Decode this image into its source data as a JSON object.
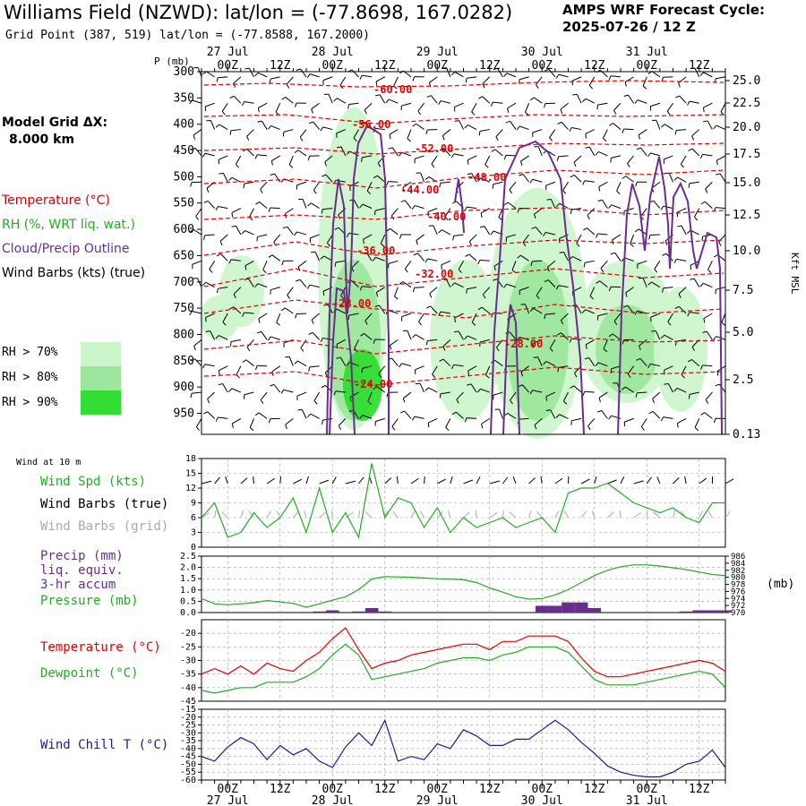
{
  "header": {
    "title": "Williams Field (NZWD):  lat/lon = (-77.8698, 167.0282)",
    "grid_point": "Grid Point (387, 519) lat/lon = (-77.8588, 167.2000)",
    "cycle_line1": "AMPS WRF Forecast Cycle:",
    "cycle_line2": "2025-07-26 / 12  Z",
    "model_grid_line1": "Model Grid ΔX:",
    "model_grid_line2": "8.000 km"
  },
  "legend": {
    "temperature": "Temperature (°C)",
    "rh": "RH (%, WRT liq. wat.)",
    "cloud": "Cloud/Precip Outline",
    "wind": "Wind Barbs (kts) (true)",
    "rh70": "RH > 70%",
    "rh80": "RH > 80%",
    "rh90": "RH > 90%",
    "colors": {
      "temperature": "#e00000",
      "rh": "#22aa22",
      "cloud": "#6a2c8e",
      "wind": "#000000",
      "rh70": "#ccf5cc",
      "rh80": "#9de69d",
      "rh90": "#33dd33"
    }
  },
  "time_axis": {
    "hour_labels": [
      "00Z",
      "12Z",
      "00Z",
      "12Z",
      "00Z",
      "12Z",
      "00Z",
      "12Z",
      "00Z",
      "12Z"
    ],
    "date_labels": [
      "27 Jul",
      "28 Jul",
      "29 Jul",
      "30 Jul",
      "31 Jul"
    ]
  },
  "chart_data": [
    {
      "type": "heatmap",
      "name": "pressure-time cross section",
      "y_label": "P (mb)",
      "y_right_label": "Kft MSL",
      "pressure_ticks": [
        300,
        350,
        400,
        450,
        500,
        550,
        600,
        650,
        700,
        750,
        800,
        850,
        900,
        950
      ],
      "height_ticks": [
        "25.0",
        "22.5",
        "20.0",
        "17.5",
        "15.0",
        "12.5",
        "10.0",
        "7.5",
        "5.0",
        "2.5",
        "0.13"
      ],
      "temperature_contour_labels": [
        "-60.00",
        "-56.00",
        "-52.00",
        "-48.00",
        "-44.00",
        "-40.00",
        "-36.00",
        "-32.00",
        "-28.00",
        "-28.00",
        "-24.00"
      ]
    },
    {
      "type": "line",
      "name": "Wind at 10 m",
      "panel_label": "Wind at 10 m",
      "series_labels": [
        "Wind Spd (kts)",
        "Wind Barbs (true)",
        "Wind Barbs (grid)"
      ],
      "yticks": [
        0,
        3,
        6,
        9,
        12,
        15,
        18
      ],
      "ylim": [
        0,
        18
      ],
      "forecast_hours": [
        0,
        3,
        6,
        9,
        12,
        15,
        18,
        21,
        24,
        27,
        30,
        33,
        36,
        39,
        42,
        45,
        48,
        51,
        54,
        57,
        60,
        63,
        66,
        69,
        72,
        75,
        78,
        81,
        84,
        87,
        90,
        93,
        96,
        99,
        102,
        105,
        108,
        111,
        114,
        117,
        120
      ],
      "wind_speed": [
        6,
        9,
        2,
        3,
        7,
        4,
        6,
        10,
        3,
        12,
        3,
        7,
        2,
        17,
        6,
        10,
        9,
        4,
        8,
        3,
        6,
        4,
        5,
        6,
        4,
        5,
        6,
        3,
        11,
        12,
        12,
        13,
        11,
        9,
        8,
        7,
        8,
        6,
        5,
        9,
        9
      ]
    },
    {
      "type": "line",
      "name": "Precip and Pressure",
      "series_labels": [
        "Precip (mm)",
        "liq. equiv.",
        "3-hr accum",
        "Pressure (mb)"
      ],
      "y_left_ticks": [
        "0.0",
        "0.5",
        "1.0",
        "1.5",
        "2.0",
        "2.5"
      ],
      "y_right_ticks": [
        "986",
        "984",
        "982",
        "980",
        "978",
        "976",
        "974",
        "972",
        "970"
      ],
      "y_right_unit": "(mb)",
      "precip_3hr": [
        0,
        0,
        0,
        0,
        0,
        0,
        0,
        0,
        0,
        0.05,
        0.1,
        0,
        0.05,
        0.2,
        0.05,
        0,
        0,
        0,
        0,
        0,
        0,
        0,
        0,
        0,
        0,
        0,
        0.3,
        0.3,
        0.45,
        0.45,
        0.2,
        0,
        0,
        0,
        0,
        0,
        0,
        0.05,
        0.1,
        0.1,
        0.1
      ],
      "pressure": [
        974,
        972.5,
        972.2,
        972.5,
        972.8,
        973.4,
        973.0,
        972.6,
        971.5,
        972.5,
        973.5,
        974.5,
        976.5,
        979.5,
        980.2,
        980.1,
        980.0,
        979.8,
        979.6,
        979.5,
        979.3,
        978.5,
        977.0,
        975.8,
        974.5,
        973.8,
        974.0,
        975.0,
        976.5,
        978.5,
        980.5,
        982.0,
        983.0,
        983.5,
        983.5,
        983.2,
        982.7,
        982.2,
        981.5,
        980.8,
        980.5
      ]
    },
    {
      "type": "line",
      "name": "Temperature and Dewpoint",
      "series_labels": [
        "Temperature (°C)",
        "Dewpoint (°C)"
      ],
      "yticks": [
        -45,
        -40,
        -35,
        -30,
        -25,
        -20
      ],
      "ylim": [
        -45,
        -15
      ],
      "temperature": [
        -35,
        -33,
        -35,
        -32,
        -35,
        -31,
        -33,
        -34,
        -30,
        -27,
        -22,
        -18,
        -26,
        -33,
        -31,
        -30,
        -28,
        -27,
        -26,
        -25,
        -24,
        -24,
        -26,
        -23,
        -23,
        -21,
        -21,
        -21,
        -23,
        -29,
        -34,
        -36,
        -36,
        -35,
        -34,
        -33,
        -32,
        -31,
        -30,
        -31,
        -34
      ],
      "dewpoint": [
        -41,
        -42,
        -41,
        -40,
        -40,
        -38,
        -38,
        -38,
        -36,
        -33,
        -28,
        -24,
        -28,
        -37,
        -36,
        -35,
        -34,
        -33,
        -31,
        -30,
        -29,
        -29,
        -30,
        -28,
        -27,
        -25,
        -25,
        -25,
        -27,
        -32,
        -37,
        -39,
        -39,
        -39,
        -38,
        -37,
        -36,
        -35,
        -34,
        -35,
        -40
      ]
    },
    {
      "type": "line",
      "name": "Wind Chill",
      "series_labels": [
        "Wind Chill T (°C)"
      ],
      "yticks": [
        -60,
        -55,
        -50,
        -45,
        -40,
        -35,
        -30,
        -25,
        -20,
        -15
      ],
      "ylim": [
        -60,
        -15
      ],
      "wind_chill": [
        -45,
        -48,
        -39,
        -33,
        -37,
        -47,
        -38,
        -44,
        -40,
        -48,
        -52,
        -39,
        -30,
        -38,
        -22,
        -48,
        -45,
        -47,
        -37,
        -40,
        -28,
        -32,
        -38,
        -38,
        -34,
        -34,
        -28,
        -22,
        -28,
        -36,
        -43,
        -51,
        -55,
        -57,
        -58,
        -58,
        -55,
        -50,
        -48,
        -41,
        -52
      ]
    }
  ]
}
